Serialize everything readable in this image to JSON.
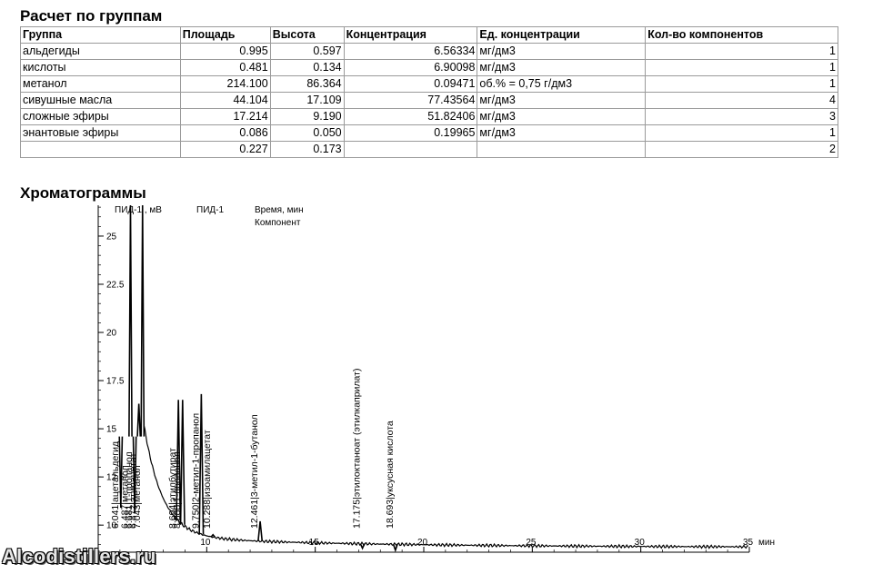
{
  "groups_title": "Расчет по группам",
  "table": {
    "headers": [
      "Группа",
      "Площадь",
      "Высота",
      "Концентрация",
      "Ед. концентрации",
      "Кол-во компонентов"
    ],
    "rows": [
      [
        "альдегиды",
        "0.995",
        "0.597",
        "6.56334",
        "мг/дм3",
        "1"
      ],
      [
        "кислоты",
        "0.481",
        "0.134",
        "6.90098",
        "мг/дм3",
        "1"
      ],
      [
        "метанол",
        "214.100",
        "86.364",
        "0.09471",
        "об.% = 0,75 г/дм3",
        "1"
      ],
      [
        "сивушные масла",
        "44.104",
        "17.109",
        "77.43564",
        "мг/дм3",
        "4"
      ],
      [
        "сложные эфиры",
        "17.214",
        "9.190",
        "51.82406",
        "мг/дм3",
        "3"
      ],
      [
        "энантовые эфиры",
        "0.086",
        "0.050",
        "0.19965",
        "мг/дм3",
        "1"
      ],
      [
        "",
        "0.227",
        "0.173",
        "",
        "",
        "2"
      ]
    ]
  },
  "chrom_title": "Хроматограммы",
  "chart_data": {
    "type": "line",
    "y_axis_label": "ПИД-1 , мВ",
    "channel_label": "ПИД-1",
    "legend_lines": [
      "Время, мин",
      "Компонент"
    ],
    "x_unit": "мин",
    "x_ticks": [
      "10",
      "15",
      "20",
      "25",
      "30",
      "35"
    ],
    "y_ticks": [
      "25",
      "22.5",
      "20",
      "17.5",
      "15",
      "12.5",
      "10"
    ],
    "xlim": [
      5.0,
      35.0
    ],
    "ylim": [
      8.5,
      26.6
    ],
    "peaks": [
      {
        "time": 6.041,
        "label": "6.041|ацетальдегид",
        "height": 10.9
      },
      {
        "time": 6.487,
        "label": "6.487|метанол",
        "height": 26.6
      },
      {
        "time": 6.681,
        "label": "6.681|1-пропанол",
        "height": 10.6
      },
      {
        "time": 6.872,
        "label": "6.872|этилацетат",
        "height": 16.3
      },
      {
        "time": 7.043,
        "label": "7.043|метанол",
        "height": 26.6
      },
      {
        "time": 8.694,
        "label": "8.694|этилбутират",
        "height": 16.5
      },
      {
        "time": 8.888,
        "label": "8.888|1-пропанол",
        "height": 16.5
      },
      {
        "time": 9.75,
        "label": "9.750|2-метил-1-пропанол",
        "height": 16.8
      },
      {
        "time": 10.288,
        "label": "10.288|изоамилацетат",
        "height": 9.5
      },
      {
        "time": 12.461,
        "label": "12.461|3-метил-1-бутанол",
        "height": 10.2
      },
      {
        "time": 17.175,
        "label": "17.175|этилоктаноат (этилкаприлат)",
        "height": 8.8
      },
      {
        "time": 18.693,
        "label": "18.693|уксусная кислота",
        "height": 8.7
      }
    ]
  },
  "watermark": "Alcodistillers.ru"
}
